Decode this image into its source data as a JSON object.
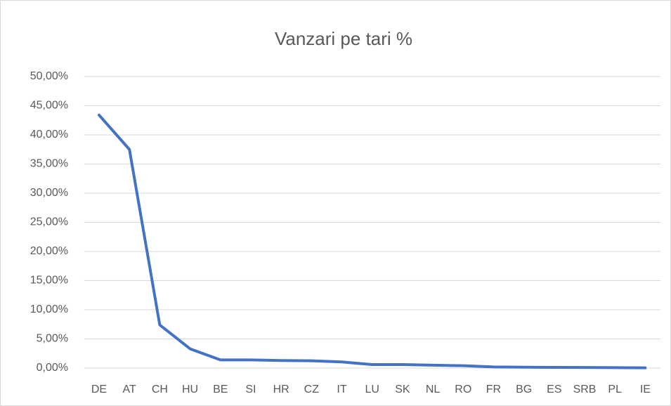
{
  "chart_data": {
    "type": "line",
    "title": "Vanzari pe tari %",
    "categories": [
      "DE",
      "AT",
      "CH",
      "HU",
      "BE",
      "SI",
      "HR",
      "CZ",
      "IT",
      "LU",
      "SK",
      "NL",
      "RO",
      "FR",
      "BG",
      "ES",
      "SRB",
      "PL",
      "IE"
    ],
    "series": [
      {
        "name": "Vanzari",
        "color": "#4472c4",
        "values": [
          43.4,
          37.5,
          7.4,
          3.3,
          1.4,
          1.4,
          1.3,
          1.25,
          1.05,
          0.6,
          0.6,
          0.5,
          0.4,
          0.2,
          0.15,
          0.12,
          0.1,
          0.07,
          0.05
        ]
      }
    ],
    "ylim": [
      0,
      50
    ],
    "yticks": [
      {
        "value": 0,
        "label": "0,00%"
      },
      {
        "value": 5,
        "label": "5,00%"
      },
      {
        "value": 10,
        "label": "10,00%"
      },
      {
        "value": 15,
        "label": "15,00%"
      },
      {
        "value": 20,
        "label": "20,00%"
      },
      {
        "value": 25,
        "label": "25,00%"
      },
      {
        "value": 30,
        "label": "30,00%"
      },
      {
        "value": 35,
        "label": "35,00%"
      },
      {
        "value": 40,
        "label": "40,00%"
      },
      {
        "value": 45,
        "label": "45,00%"
      },
      {
        "value": 50,
        "label": "50,00%"
      }
    ],
    "grid": true
  }
}
